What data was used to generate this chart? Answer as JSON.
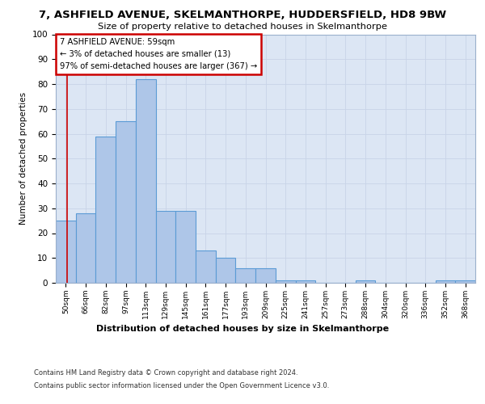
{
  "title_line1": "7, ASHFIELD AVENUE, SKELMANTHORPE, HUDDERSFIELD, HD8 9BW",
  "title_line2": "Size of property relative to detached houses in Skelmanthorpe",
  "xlabel": "Distribution of detached houses by size in Skelmanthorpe",
  "ylabel": "Number of detached properties",
  "categories": [
    "50sqm",
    "66sqm",
    "82sqm",
    "97sqm",
    "113sqm",
    "129sqm",
    "145sqm",
    "161sqm",
    "177sqm",
    "193sqm",
    "209sqm",
    "225sqm",
    "241sqm",
    "257sqm",
    "273sqm",
    "288sqm",
    "304sqm",
    "320sqm",
    "336sqm",
    "352sqm",
    "368sqm"
  ],
  "values": [
    25,
    28,
    59,
    65,
    82,
    29,
    29,
    13,
    10,
    6,
    6,
    1,
    1,
    0,
    0,
    1,
    0,
    0,
    0,
    1,
    1
  ],
  "bar_color": "#aec6e8",
  "bar_edge_color": "#5b9bd5",
  "annotation_title": "7 ASHFIELD AVENUE: 59sqm",
  "annotation_line2": "← 3% of detached houses are smaller (13)",
  "annotation_line3": "97% of semi-detached houses are larger (367) →",
  "annotation_box_color": "#ffffff",
  "annotation_box_edge": "#cc0000",
  "red_line_color": "#cc0000",
  "ylim": [
    0,
    100
  ],
  "yticks": [
    0,
    10,
    20,
    30,
    40,
    50,
    60,
    70,
    80,
    90,
    100
  ],
  "grid_color": "#c8d4e8",
  "bg_color": "#dce6f4",
  "footer_line1": "Contains HM Land Registry data © Crown copyright and database right 2024.",
  "footer_line2": "Contains public sector information licensed under the Open Government Licence v3.0."
}
